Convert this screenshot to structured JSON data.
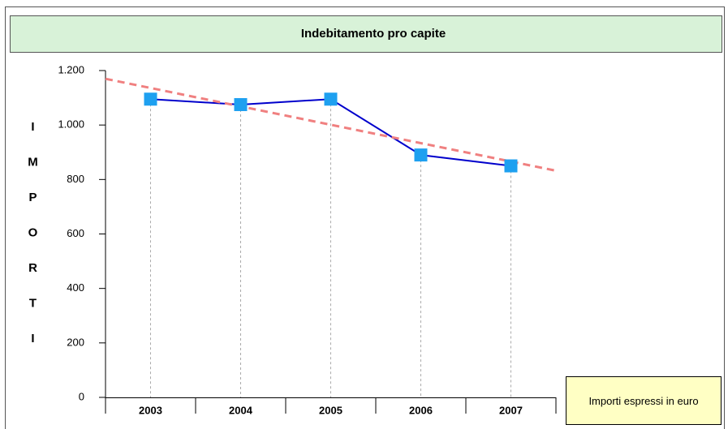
{
  "chart_data": {
    "type": "line",
    "title": "Indebitamento pro capite",
    "y_label": "IMPORTI",
    "note": "Importi espressi in euro",
    "categories": [
      "2003",
      "2004",
      "2005",
      "2006",
      "2007"
    ],
    "series": [
      {
        "color": "#0000cc",
        "marker_color": "#1ea0f0",
        "values": [
          1095,
          1075,
          1095,
          890,
          850
        ]
      }
    ],
    "trendline": {
      "color": "#f08080",
      "values": [
        1136,
        1069,
        1001,
        934,
        866
      ]
    },
    "ylim": [
      0,
      1200
    ],
    "yticks": [
      0,
      200,
      400,
      600,
      800,
      {
        "value": 1000,
        "label": "1.000"
      },
      {
        "value": 1200,
        "label": "1.200"
      }
    ]
  }
}
